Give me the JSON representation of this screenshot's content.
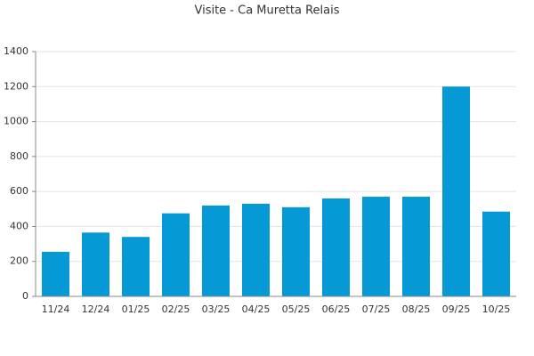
{
  "chart_data": {
    "type": "bar",
    "title": "Visite - Ca Muretta Relais",
    "categories": [
      "11/24",
      "12/24",
      "01/25",
      "02/25",
      "03/25",
      "04/25",
      "05/25",
      "06/25",
      "07/25",
      "08/25",
      "09/25",
      "10/25"
    ],
    "values": [
      255,
      365,
      340,
      475,
      520,
      530,
      510,
      560,
      570,
      570,
      1200,
      485
    ],
    "color": "#0599d6",
    "ylim": [
      0,
      1400
    ],
    "yticks": [
      0,
      200,
      400,
      600,
      800,
      1000,
      1200,
      1400
    ],
    "grid": true
  }
}
